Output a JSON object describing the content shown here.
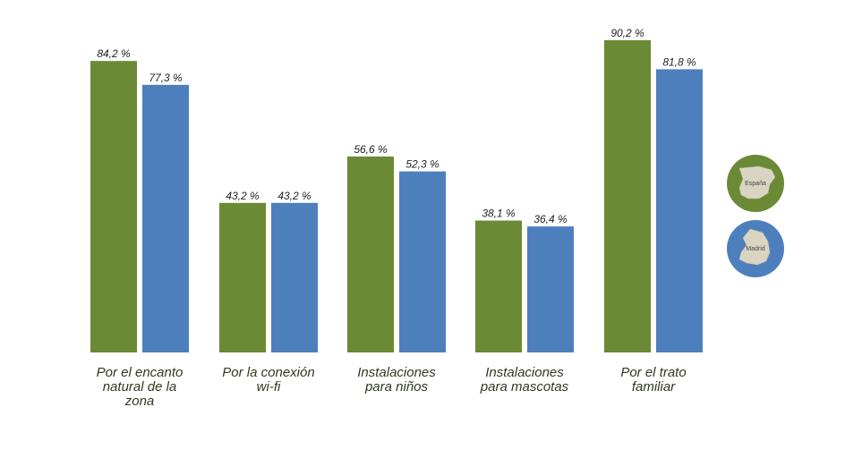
{
  "chart_data": {
    "type": "bar",
    "categories": [
      "Por el encanto natural de la zona",
      "Por la conexión wi-fi",
      "Instalaciones para niños",
      "Instalaciones para mascotas",
      "Por el trato familiar"
    ],
    "category_lines": [
      [
        "Por el encanto",
        "natural de la",
        "zona"
      ],
      [
        "Por la conexión",
        "wi-fi"
      ],
      [
        "Instalaciones",
        "para niños"
      ],
      [
        "Instalaciones",
        "para mascotas"
      ],
      [
        "Por el trato",
        "familiar"
      ]
    ],
    "series": [
      {
        "name": "España",
        "color": "#6b8a35",
        "values": [
          84.2,
          43.2,
          56.6,
          38.1,
          90.2
        ],
        "labels": [
          "84,2 %",
          "43,2 %",
          "56,6 %",
          "38,1 %",
          "90,2 %"
        ]
      },
      {
        "name": "Madrid",
        "color": "#4e7fbd",
        "values": [
          77.3,
          43.2,
          52.3,
          36.4,
          81.8
        ],
        "labels": [
          "77,3 %",
          "43,2 %",
          "52,3 %",
          "36,4 %",
          "81,8 %"
        ]
      }
    ],
    "ylim": [
      0,
      100
    ],
    "grid": false,
    "legend": {
      "placement": "right",
      "style": "map-icons",
      "items": [
        {
          "label": "España",
          "color": "#6b8a35",
          "icon": "spain-map-icon"
        },
        {
          "label": "Madrid",
          "color": "#4e7fbd",
          "icon": "madrid-map-icon"
        }
      ]
    }
  }
}
